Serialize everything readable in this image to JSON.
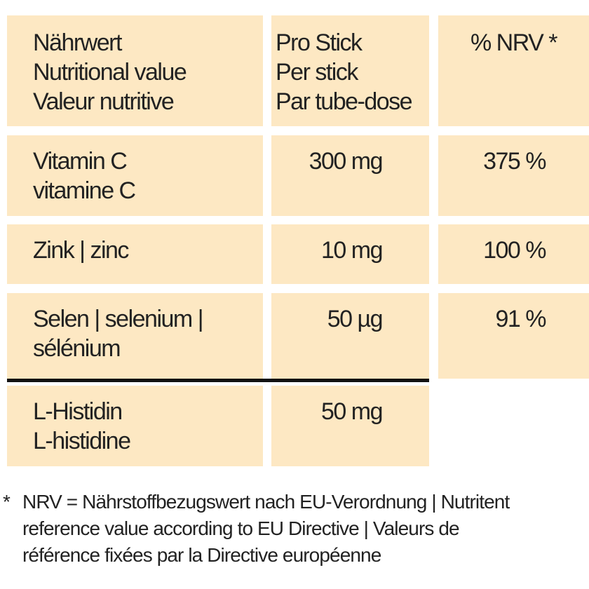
{
  "table": {
    "header": [
      [
        "Nährwert",
        "Nutritional value",
        "Valeur nutritive"
      ],
      [
        "Pro Stick",
        "Per stick",
        "Par tube-dose"
      ],
      [
        "% NRV *"
      ]
    ],
    "rows": [
      [
        [
          "Vitamin C",
          "vitamine C"
        ],
        "300 mg",
        "375 %"
      ],
      [
        [
          "Zink | zinc"
        ],
        "10 mg",
        "100 %"
      ],
      [
        [
          "Selen | selenium |",
          "sélénium"
        ],
        "50 µg",
        "91 %"
      ],
      [
        [
          "L-Histidin",
          "L-histidine"
        ],
        "50 mg"
      ]
    ]
  },
  "footnote": {
    "marker": "*",
    "lines": [
      "NRV = Nährstoffbezugswert nach EU-Verordnung | Nutritent",
      "reference value according to EU Directive | Valeurs de",
      "référence fixées par la Directive européenne"
    ]
  }
}
